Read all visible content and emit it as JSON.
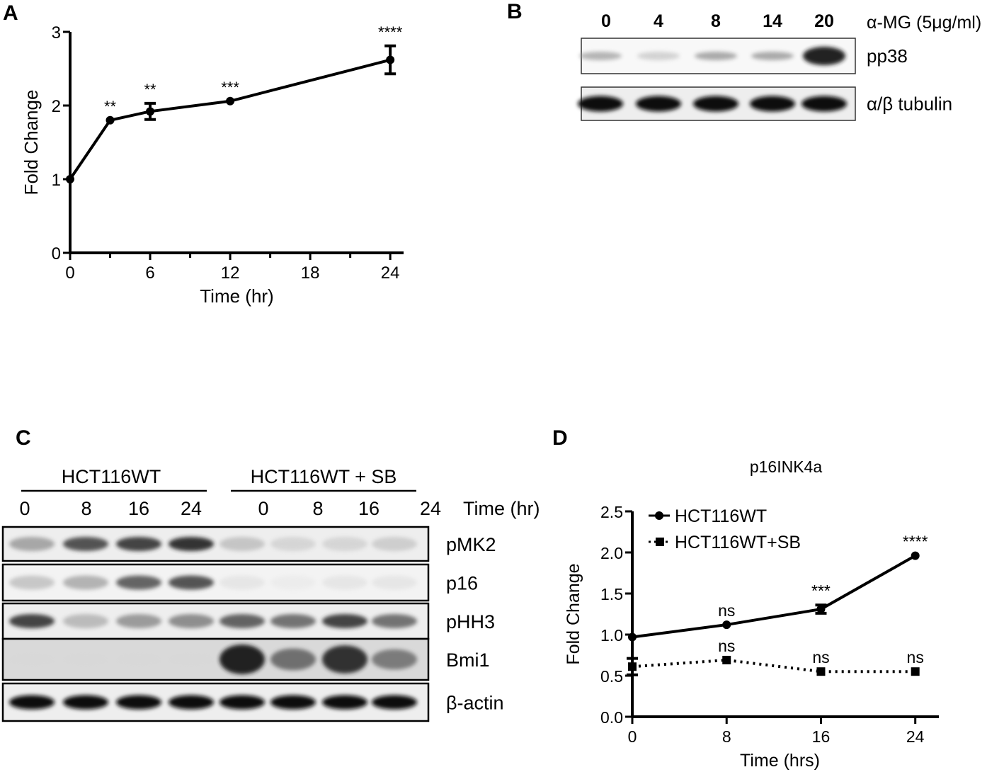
{
  "panels": {
    "a": "A",
    "b": "B",
    "c": "C",
    "d": "D"
  },
  "chart_data": [
    {
      "panel": "A",
      "type": "line",
      "xlabel": "Time (hr)",
      "ylabel": "Fold Change",
      "xlim": [
        0,
        25
      ],
      "ylim": [
        0,
        3
      ],
      "xticks": [
        "0",
        "6",
        "12",
        "18",
        "24"
      ],
      "yticks": [
        "0",
        "1",
        "2",
        "3"
      ],
      "series": [
        {
          "x": [
            0,
            3,
            6,
            12,
            24
          ],
          "y": [
            1.0,
            1.8,
            1.92,
            2.06,
            2.62
          ],
          "err": [
            0,
            0,
            0.11,
            0,
            0.19
          ],
          "annotations": [
            "",
            "**",
            "**",
            "***",
            "****"
          ]
        }
      ]
    },
    {
      "panel": "D",
      "type": "line",
      "title": "p16INK4a",
      "xlabel": "Time (hrs)",
      "ylabel": "Fold Change",
      "xlim": [
        0,
        26
      ],
      "ylim": [
        0,
        2.5
      ],
      "xticks": [
        "0",
        "8",
        "16",
        "24"
      ],
      "yticks": [
        "0.0",
        "0.5",
        "1.0",
        "1.5",
        "2.0",
        "2.5"
      ],
      "legend_position": "top-left",
      "series": [
        {
          "name": "HCT116WT",
          "marker": "circle",
          "linestyle": "solid",
          "x": [
            0,
            8,
            16,
            24
          ],
          "y": [
            0.97,
            1.12,
            1.31,
            1.96
          ],
          "err": [
            0,
            0,
            0.05,
            0
          ],
          "annotations": [
            "",
            "ns",
            "***",
            "****"
          ]
        },
        {
          "name": "HCT116WT+SB",
          "marker": "square",
          "linestyle": "dotted",
          "x": [
            0,
            8,
            16,
            24
          ],
          "y": [
            0.61,
            0.69,
            0.55,
            0.55
          ],
          "err": [
            0.1,
            0,
            0,
            0
          ],
          "annotations": [
            "",
            "ns",
            "ns",
            "ns"
          ]
        }
      ]
    }
  ],
  "blot_b": {
    "header_lanes": [
      "0",
      "4",
      "8",
      "14",
      "20"
    ],
    "header_label": "α-MG (5μg/ml)",
    "rows": [
      {
        "label": "pp38",
        "intensity": [
          0.45,
          0.3,
          0.5,
          0.5,
          0.95
        ]
      },
      {
        "label": "α/β tubulin",
        "intensity": [
          1,
          1,
          1,
          1,
          1
        ]
      }
    ]
  },
  "blot_c": {
    "groups": [
      "HCT116WT",
      "HCT116WT + SB"
    ],
    "lanes": [
      "0",
      "8",
      "16",
      "24",
      "0",
      "8",
      "16",
      "24"
    ],
    "time_label": "Time (hr)",
    "rows": [
      {
        "label": "pMK2",
        "intensity": [
          0.5,
          0.8,
          0.85,
          0.9,
          0.35,
          0.25,
          0.25,
          0.3
        ]
      },
      {
        "label": "p16",
        "intensity": [
          0.35,
          0.45,
          0.75,
          0.8,
          0.15,
          0.1,
          0.15,
          0.15
        ]
      },
      {
        "label": "pHH3",
        "intensity": [
          0.85,
          0.4,
          0.55,
          0.6,
          0.75,
          0.7,
          0.85,
          0.7
        ]
      },
      {
        "label": "Bmi1",
        "intensity": [
          0.15,
          0.15,
          0.15,
          0.15,
          0.95,
          0.7,
          0.9,
          0.65
        ]
      },
      {
        "label": "β-actin",
        "intensity": [
          1,
          1,
          1,
          1,
          1,
          1,
          1,
          1
        ]
      }
    ]
  }
}
